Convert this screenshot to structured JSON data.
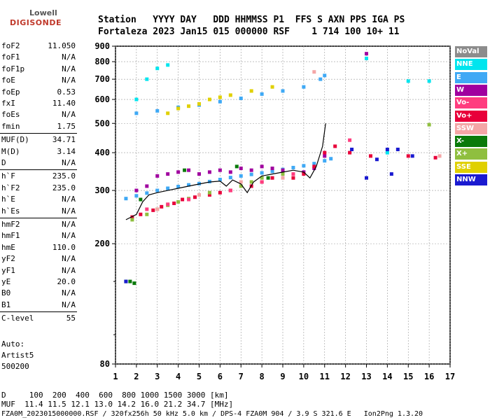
{
  "logo": {
    "line1": "Lowell",
    "line2": "DIGISONDE"
  },
  "header": {
    "labels": "Station   YYYY DAY   DDD HHMMSS P1  FFS S AXN PPS IGA PS",
    "values": "Fortaleza 2023 Jan15 015 000000 RSF    1 714 100 10+ 11"
  },
  "params": [
    {
      "k": "foF2",
      "v": "11.050"
    },
    {
      "k": "foF1",
      "v": "N/A"
    },
    {
      "k": "foF1p",
      "v": "N/A"
    },
    {
      "k": "foE",
      "v": "N/A"
    },
    {
      "k": "foEp",
      "v": "0.53"
    },
    {
      "k": "fxI",
      "v": "11.40"
    },
    {
      "k": "foEs",
      "v": "N/A"
    },
    {
      "k": "fmin",
      "v": "1.75"
    },
    {
      "k": "MUF(D)",
      "v": "34.71"
    },
    {
      "k": "M(D)",
      "v": "3.14"
    },
    {
      "k": "D",
      "v": "N/A"
    },
    {
      "k": "h`F",
      "v": "235.0"
    },
    {
      "k": "h`F2",
      "v": "235.0"
    },
    {
      "k": "h`E",
      "v": "N/A"
    },
    {
      "k": "h`Es",
      "v": "N/A"
    },
    {
      "k": "hmF2",
      "v": "N/A"
    },
    {
      "k": "hmF1",
      "v": "N/A"
    },
    {
      "k": "hmE",
      "v": "110.0"
    },
    {
      "k": "yF2",
      "v": "N/A"
    },
    {
      "k": "yF1",
      "v": "N/A"
    },
    {
      "k": "yE",
      "v": "20.0"
    },
    {
      "k": "B0",
      "v": "N/A"
    },
    {
      "k": "B1",
      "v": "N/A"
    },
    {
      "k": "C-level",
      "v": "55"
    }
  ],
  "auto": {
    "l1": "Auto:",
    "l2": "Artist5",
    "l3": "500200"
  },
  "legend": [
    {
      "label": "NoVal",
      "color": "#8c8c8c"
    },
    {
      "label": "NNE",
      "color": "#00e5ee"
    },
    {
      "label": "E",
      "color": "#3fa9f5"
    },
    {
      "label": "W",
      "color": "#a0009f"
    },
    {
      "label": "Vo-",
      "color": "#ff3d7f"
    },
    {
      "label": "Vo+",
      "color": "#e8003a"
    },
    {
      "label": "SSW",
      "color": "#f4a6a6"
    },
    {
      "label": "X-",
      "color": "#0a7a0a"
    },
    {
      "label": "X+",
      "color": "#8fbf3f"
    },
    {
      "label": "SSE",
      "color": "#e0d000"
    },
    {
      "label": "NNW",
      "color": "#1a1ad0"
    }
  ],
  "footer": {
    "line1": "D     100  200  400  600  800 1000 1500 3000 [km]",
    "line2": "MUF  11.4 11.5 12.1 13.0 14.2 16.0 21.2 34.7 [MHz]",
    "line3": "FZA0M_2023015000000.RSF / 320fx256h 50 kHz 5.0 km / DPS-4 FZA0M 904 / 3.9 S 321.6 E   Ion2Png 1.3.20"
  },
  "chart_data": {
    "type": "scatter",
    "xlim": [
      1,
      17
    ],
    "ylim": [
      80,
      900
    ],
    "y_scale": "log",
    "xticks": [
      1,
      2,
      3,
      4,
      5,
      6,
      7,
      8,
      9,
      10,
      11,
      12,
      13,
      14,
      15,
      16,
      17
    ],
    "yticks": [
      80,
      200,
      300,
      400,
      500,
      600,
      700,
      800,
      900
    ],
    "grid": true,
    "series": [
      {
        "name": "E",
        "color": "#3fa9f5",
        "points": [
          [
            1.5,
            282
          ],
          [
            2.0,
            288
          ],
          [
            2.5,
            294
          ],
          [
            3.0,
            300
          ],
          [
            3.5,
            305
          ],
          [
            4.0,
            309
          ],
          [
            4.5,
            313
          ],
          [
            5.0,
            316
          ],
          [
            5.5,
            321
          ],
          [
            6.0,
            326
          ],
          [
            6.5,
            331
          ],
          [
            7.0,
            335
          ],
          [
            7.5,
            339
          ],
          [
            8.0,
            343
          ],
          [
            8.5,
            347
          ],
          [
            9.0,
            352
          ],
          [
            9.5,
            357
          ],
          [
            10.0,
            362
          ],
          [
            10.5,
            368
          ],
          [
            11.0,
            376
          ],
          [
            11.3,
            382
          ],
          [
            2.0,
            540
          ],
          [
            3.0,
            550
          ],
          [
            4.0,
            565
          ],
          [
            5.0,
            575
          ],
          [
            6.0,
            590
          ],
          [
            7.0,
            605
          ],
          [
            8.0,
            625
          ],
          [
            9.0,
            640
          ],
          [
            10.0,
            660
          ],
          [
            10.8,
            700
          ],
          [
            11.0,
            720
          ]
        ]
      },
      {
        "name": "W",
        "color": "#a0009f",
        "points": [
          [
            2.0,
            300
          ],
          [
            2.5,
            310
          ],
          [
            3.0,
            335
          ],
          [
            3.5,
            340
          ],
          [
            4.0,
            345
          ],
          [
            4.5,
            350
          ],
          [
            5.0,
            340
          ],
          [
            5.5,
            345
          ],
          [
            6.0,
            350
          ],
          [
            6.5,
            345
          ],
          [
            7.0,
            355
          ],
          [
            7.5,
            350
          ],
          [
            8.0,
            360
          ],
          [
            8.5,
            355
          ],
          [
            9.0,
            350
          ],
          [
            10.0,
            345
          ],
          [
            10.5,
            355
          ],
          [
            11.0,
            390
          ],
          [
            13.0,
            850
          ]
        ]
      },
      {
        "name": "Vo+",
        "color": "#e8003a",
        "points": [
          [
            1.8,
            245
          ],
          [
            2.2,
            250
          ],
          [
            2.8,
            258
          ],
          [
            3.2,
            265
          ],
          [
            3.8,
            272
          ],
          [
            4.2,
            280
          ],
          [
            4.8,
            285
          ],
          [
            5.5,
            290
          ],
          [
            6.0,
            295
          ],
          [
            6.5,
            300
          ],
          [
            7.5,
            310
          ],
          [
            8.0,
            320
          ],
          [
            8.5,
            330
          ],
          [
            9.0,
            340
          ],
          [
            9.5,
            330
          ],
          [
            10.0,
            340
          ],
          [
            10.5,
            360
          ],
          [
            11.0,
            400
          ],
          [
            11.5,
            420
          ],
          [
            12.2,
            400
          ],
          [
            13.2,
            390
          ],
          [
            15.0,
            390
          ],
          [
            16.3,
            385
          ]
        ]
      },
      {
        "name": "X+",
        "color": "#8fbf3f",
        "points": [
          [
            1.8,
            240
          ],
          [
            2.5,
            250
          ],
          [
            3.0,
            260
          ],
          [
            3.5,
            268
          ],
          [
            4.0,
            275
          ],
          [
            4.5,
            282
          ],
          [
            5.0,
            290
          ],
          [
            5.5,
            295
          ],
          [
            7.0,
            310
          ],
          [
            7.5,
            320
          ],
          [
            8.0,
            330
          ],
          [
            9.0,
            340
          ],
          [
            16.0,
            495
          ]
        ]
      },
      {
        "name": "X-",
        "color": "#0a7a0a",
        "points": [
          [
            1.5,
            150
          ],
          [
            1.7,
            150
          ],
          [
            1.9,
            148
          ],
          [
            2.2,
            280
          ],
          [
            4.3,
            350
          ],
          [
            6.8,
            360
          ],
          [
            8.3,
            330
          ]
        ]
      },
      {
        "name": "SSE",
        "color": "#e0d000",
        "points": [
          [
            3.5,
            540
          ],
          [
            4.0,
            560
          ],
          [
            4.5,
            570
          ],
          [
            5.0,
            580
          ],
          [
            5.5,
            600
          ],
          [
            6.0,
            610
          ],
          [
            6.5,
            620
          ],
          [
            7.5,
            640
          ],
          [
            8.5,
            660
          ]
        ]
      },
      {
        "name": "NNE",
        "color": "#00e5ee",
        "points": [
          [
            2.0,
            600
          ],
          [
            2.5,
            700
          ],
          [
            3.0,
            760
          ],
          [
            3.5,
            780
          ],
          [
            13.0,
            820
          ],
          [
            14.0,
            400
          ],
          [
            15.0,
            690
          ],
          [
            16.0,
            690
          ]
        ]
      },
      {
        "name": "NNW",
        "color": "#1a1ad0",
        "points": [
          [
            1.5,
            150
          ],
          [
            12.3,
            410
          ],
          [
            13.0,
            330
          ],
          [
            13.5,
            380
          ],
          [
            14.0,
            410
          ],
          [
            14.5,
            410
          ],
          [
            14.2,
            340
          ],
          [
            15.2,
            390
          ]
        ]
      },
      {
        "name": "Vo-",
        "color": "#ff3d7f",
        "points": [
          [
            2.5,
            260
          ],
          [
            3.5,
            270
          ],
          [
            4.5,
            280
          ],
          [
            6.5,
            300
          ],
          [
            8.0,
            320
          ],
          [
            9.5,
            340
          ],
          [
            12.2,
            440
          ]
        ]
      },
      {
        "name": "SSW",
        "color": "#f4a6a6",
        "points": [
          [
            3.0,
            260
          ],
          [
            5.0,
            290
          ],
          [
            7.0,
            320
          ],
          [
            9.0,
            330
          ],
          [
            10.5,
            740
          ],
          [
            16.5,
            390
          ]
        ]
      }
    ],
    "trace": {
      "color": "#000000",
      "points": [
        [
          1.5,
          240
        ],
        [
          2.0,
          250
        ],
        [
          2.3,
          275
        ],
        [
          2.6,
          290
        ],
        [
          3.0,
          295
        ],
        [
          3.5,
          300
        ],
        [
          4.0,
          305
        ],
        [
          4.5,
          310
        ],
        [
          5.0,
          315
        ],
        [
          5.5,
          320
        ],
        [
          6.0,
          322
        ],
        [
          6.3,
          310
        ],
        [
          6.6,
          325
        ],
        [
          7.0,
          315
        ],
        [
          7.3,
          295
        ],
        [
          7.6,
          320
        ],
        [
          8.0,
          335
        ],
        [
          8.5,
          340
        ],
        [
          9.0,
          345
        ],
        [
          9.5,
          350
        ],
        [
          10.0,
          345
        ],
        [
          10.3,
          330
        ],
        [
          10.6,
          360
        ],
        [
          10.9,
          420
        ],
        [
          11.05,
          500
        ]
      ]
    }
  }
}
